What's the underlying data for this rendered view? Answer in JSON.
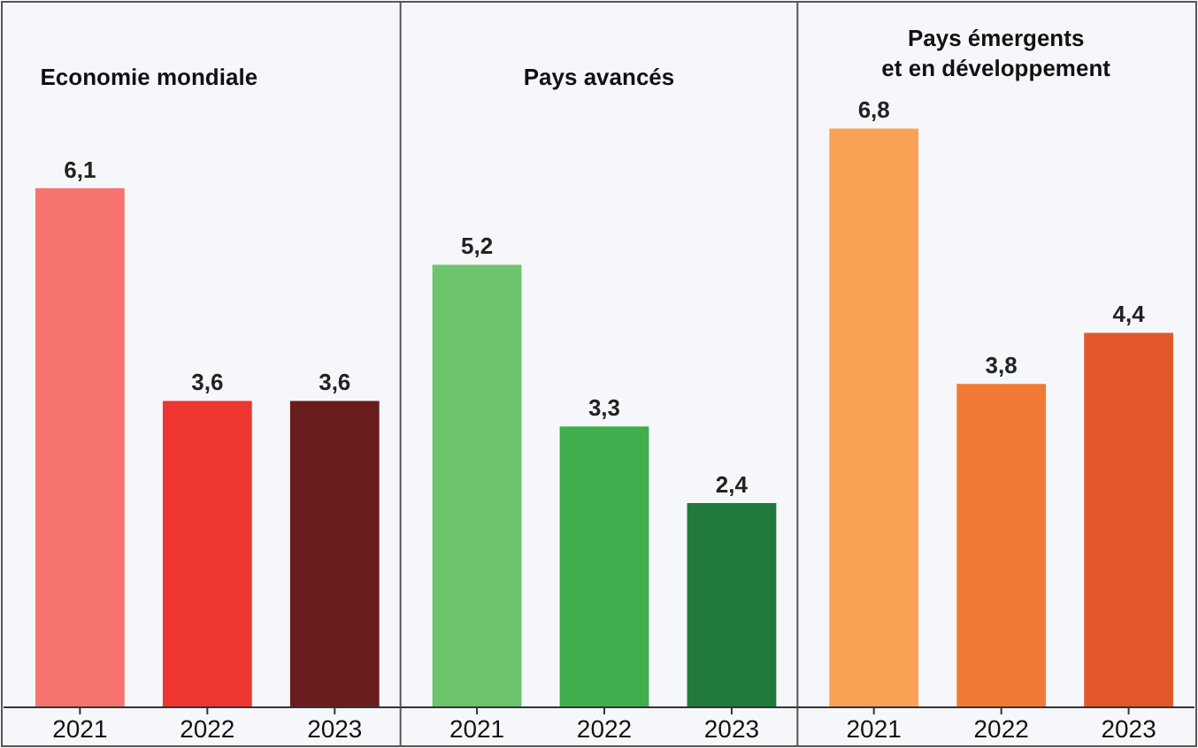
{
  "chart_data": [
    {
      "type": "bar",
      "title": "Economie mondiale",
      "categories": [
        "2021",
        "2022",
        "2023"
      ],
      "values": [
        6.1,
        3.6,
        3.6
      ],
      "value_labels": [
        "6,1",
        "3,6",
        "3,6"
      ],
      "colors": [
        "#f7736f",
        "#ee3530",
        "#6a1c1c"
      ]
    },
    {
      "type": "bar",
      "title": "Pays avancés",
      "categories": [
        "2021",
        "2022",
        "2023"
      ],
      "values": [
        5.2,
        3.3,
        2.4
      ],
      "value_labels": [
        "5,2",
        "3,3",
        "2,4"
      ],
      "colors": [
        "#6cc46c",
        "#3fae4c",
        "#1f7a3c"
      ]
    },
    {
      "type": "bar",
      "title": "Pays émergents et en développement",
      "categories": [
        "2021",
        "2022",
        "2023"
      ],
      "values": [
        6.8,
        3.8,
        4.4
      ],
      "value_labels": [
        "6,8",
        "3,8",
        "4,4"
      ],
      "colors": [
        "#f9a155",
        "#f27a35",
        "#e2582a"
      ]
    }
  ]
}
